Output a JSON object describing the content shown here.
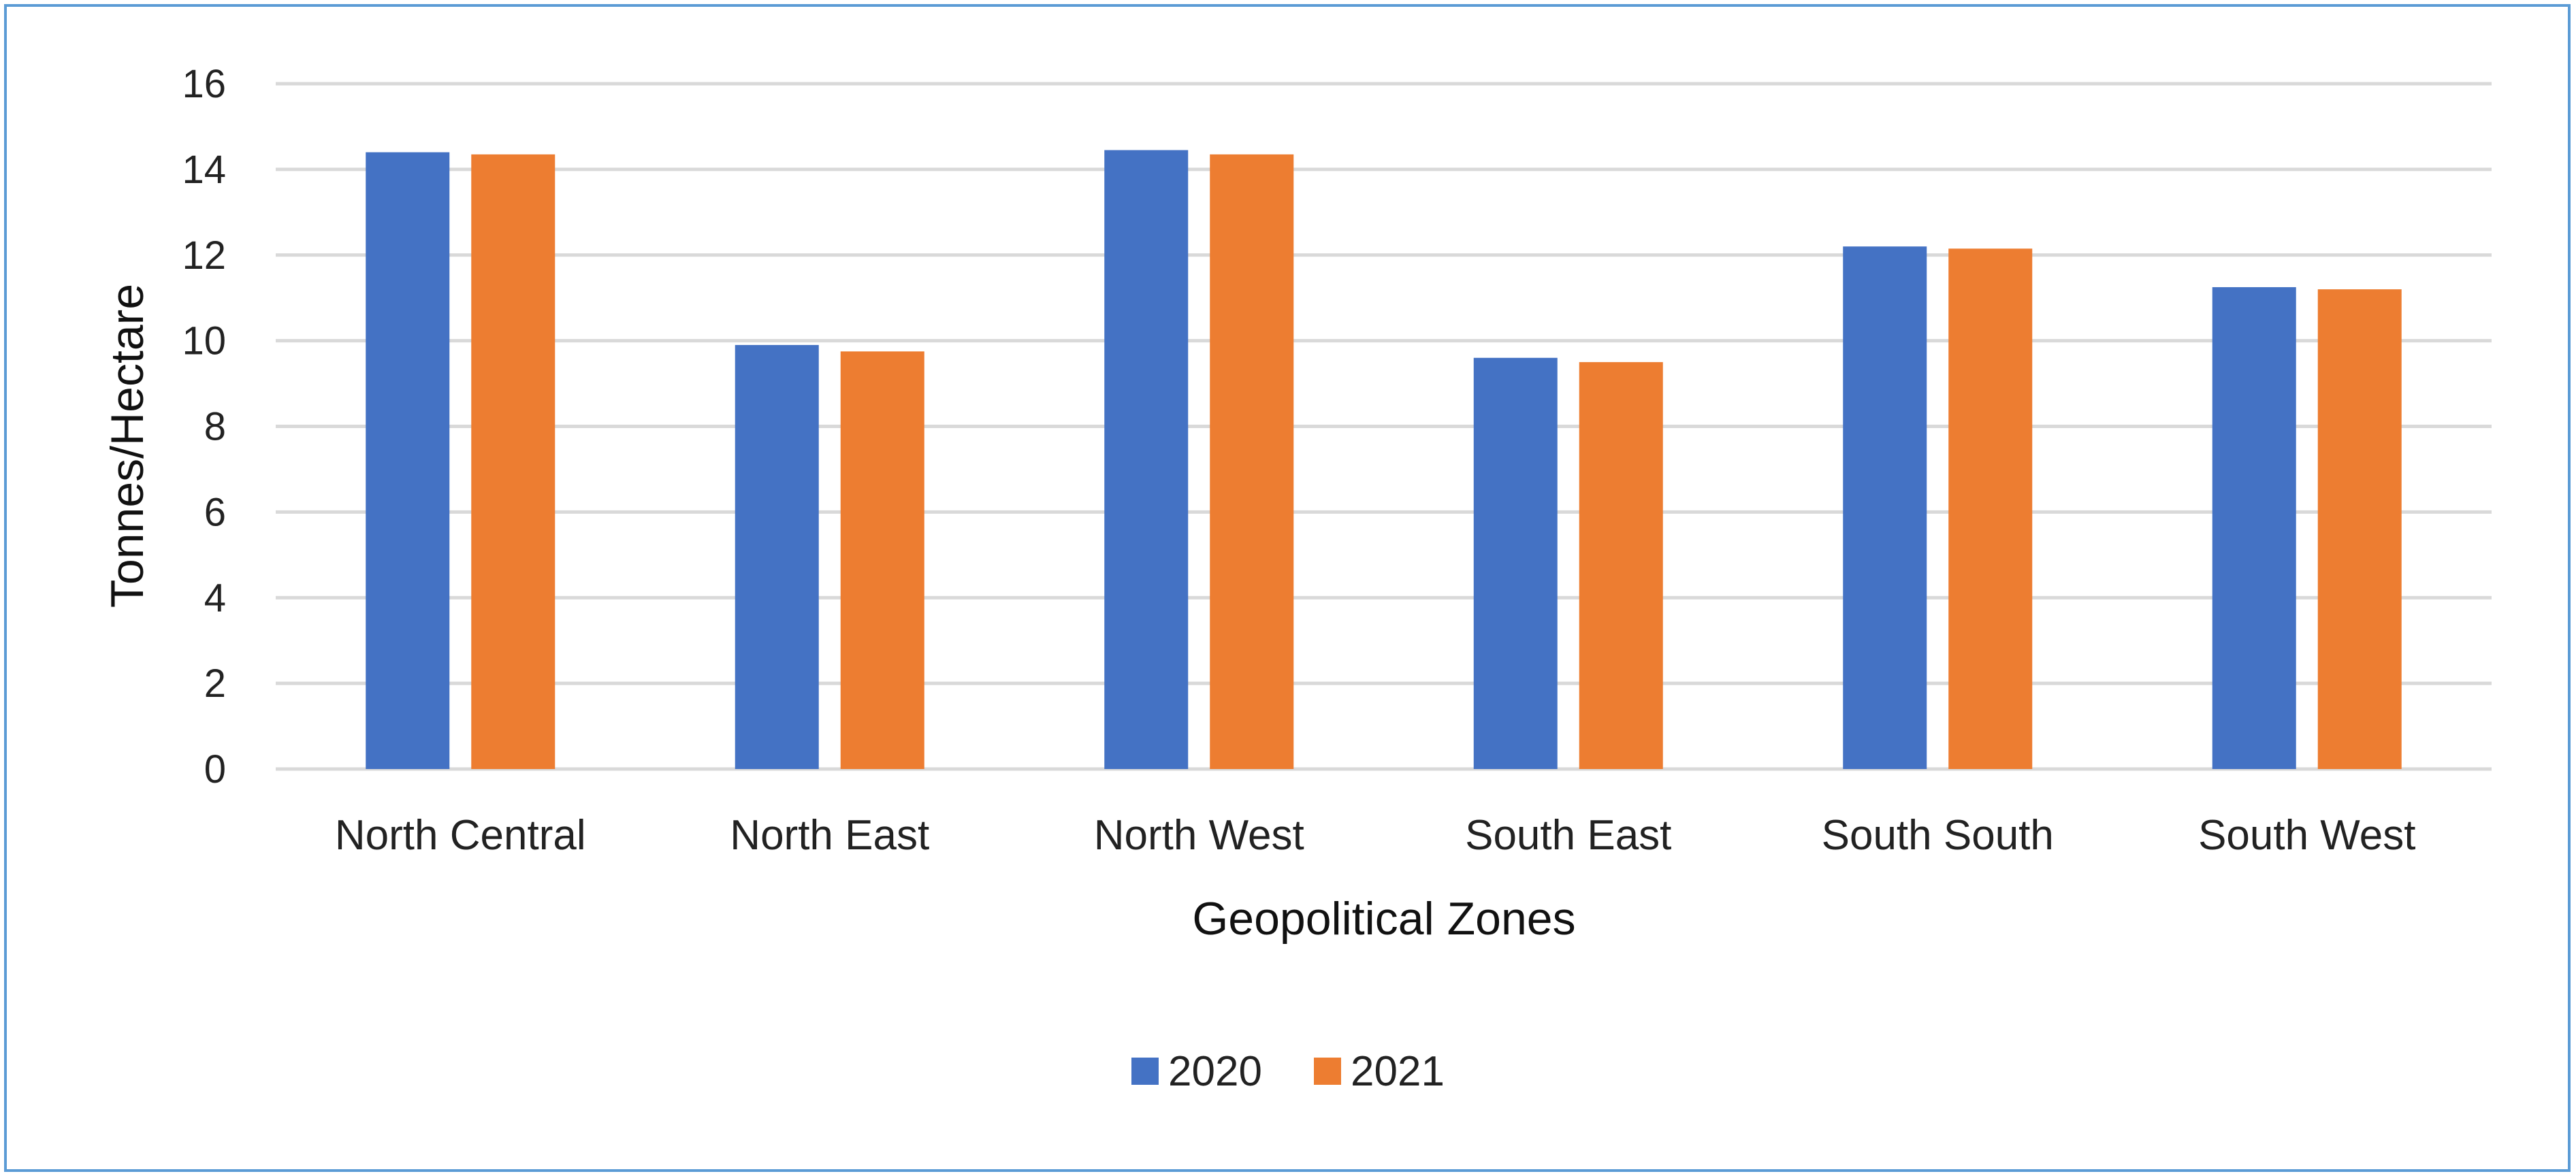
{
  "chart_data": {
    "type": "bar",
    "title": "",
    "xlabel": "Geopolitical Zones",
    "ylabel": "Tonnes/Hectare",
    "ylim": [
      0,
      16
    ],
    "yticks": [
      0,
      2,
      4,
      6,
      8,
      10,
      12,
      14,
      16
    ],
    "grid": true,
    "legend_position": "bottom",
    "categories": [
      "North Central",
      "North East",
      "North West",
      "South East",
      "South South",
      "South West"
    ],
    "series": [
      {
        "name": "2020",
        "color": "#4472c4",
        "values": [
          14.4,
          9.9,
          14.45,
          9.6,
          12.2,
          11.25
        ]
      },
      {
        "name": "2021",
        "color": "#ed7d31",
        "values": [
          14.35,
          9.75,
          14.35,
          9.5,
          12.15,
          11.2
        ]
      }
    ]
  }
}
